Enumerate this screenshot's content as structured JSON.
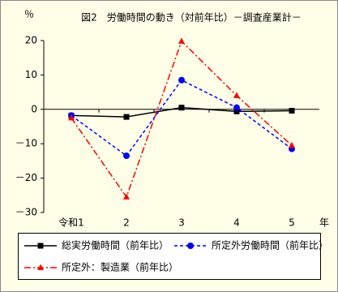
{
  "chart_data": {
    "type": "line",
    "title": "図2　労働時間の動き（対前年比）－調査産業計－",
    "y_unit": "％",
    "x_unit": "年",
    "categories": [
      "令和1",
      "2",
      "3",
      "4",
      "5"
    ],
    "series": [
      {
        "name": "総実労働時間（前年比）",
        "color": "#000000",
        "dash": "solid",
        "marker": "square",
        "values": [
          -1.8,
          -2.2,
          0.5,
          -0.6,
          -0.4
        ]
      },
      {
        "name": "所定外労働時間（前年比）",
        "color": "#0000ff",
        "dash": "dashed",
        "marker": "circle",
        "values": [
          -1.8,
          -13.5,
          8.5,
          0.5,
          -11.5
        ]
      },
      {
        "name": "所定外：製造業（前年比）",
        "color": "#ff0000",
        "dash": "dashdot",
        "marker": "triangle",
        "values": [
          -2.5,
          -25.5,
          19.8,
          4,
          -10.5
        ]
      }
    ],
    "ylim": [
      -30,
      20
    ],
    "yticks": [
      {
        "value": -30,
        "label": "－30"
      },
      {
        "value": -20,
        "label": "－20"
      },
      {
        "value": -10,
        "label": "－10"
      },
      0,
      10,
      20
    ],
    "grid": false,
    "legend": "bottom"
  }
}
